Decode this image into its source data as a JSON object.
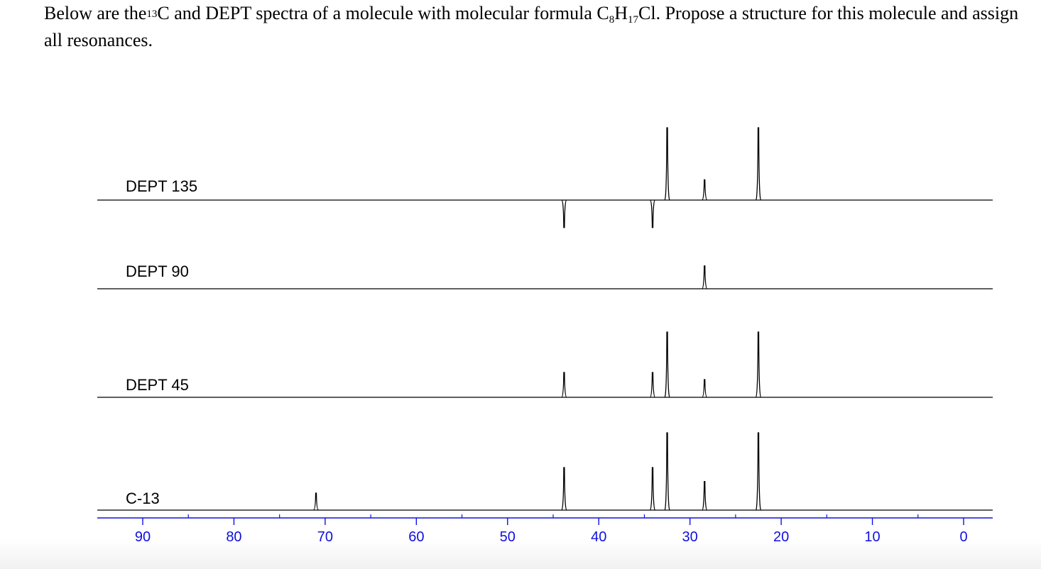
{
  "question": {
    "part1": "Below are the",
    "isotope_sup": "13",
    "part2": "C and DEPT spectra of a molecule with molecular formula C",
    "sub_c": "8",
    "part3": "H",
    "sub_h": "17",
    "part4": "Cl.  Propose a structure for this molecule and assign all resonances."
  },
  "chart_data": {
    "type": "line",
    "xlim": [
      95,
      -3
    ],
    "x_reversed": true,
    "x_ticks": [
      90,
      80,
      70,
      60,
      50,
      40,
      30,
      20,
      10,
      0
    ],
    "x_tick_labels": [
      "90",
      "80",
      "70",
      "60",
      "50",
      "40",
      "30",
      "20",
      "10",
      "0"
    ],
    "axis_color": "#1010e0",
    "trace_color": "#000000",
    "series": [
      {
        "name": "DEPT 135",
        "peaks": [
          {
            "shift": 43.8,
            "intensity": -0.38
          },
          {
            "shift": 34.1,
            "intensity": -0.38
          },
          {
            "shift": 32.5,
            "intensity": 1.0
          },
          {
            "shift": 28.4,
            "intensity": 0.28
          },
          {
            "shift": 22.5,
            "intensity": 1.0
          }
        ]
      },
      {
        "name": "DEPT 90",
        "peaks": [
          {
            "shift": 28.4,
            "intensity": 0.35
          }
        ]
      },
      {
        "name": "DEPT 45",
        "peaks": [
          {
            "shift": 43.8,
            "intensity": 0.35
          },
          {
            "shift": 34.1,
            "intensity": 0.35
          },
          {
            "shift": 32.5,
            "intensity": 0.92
          },
          {
            "shift": 28.4,
            "intensity": 0.25
          },
          {
            "shift": 22.5,
            "intensity": 0.92
          }
        ]
      },
      {
        "name": "C-13",
        "peaks": [
          {
            "shift": 71.0,
            "intensity": 0.22
          },
          {
            "shift": 43.8,
            "intensity": 0.55
          },
          {
            "shift": 34.1,
            "intensity": 0.55
          },
          {
            "shift": 32.5,
            "intensity": 1.0
          },
          {
            "shift": 28.4,
            "intensity": 0.37
          },
          {
            "shift": 22.5,
            "intensity": 1.0
          }
        ]
      }
    ]
  }
}
